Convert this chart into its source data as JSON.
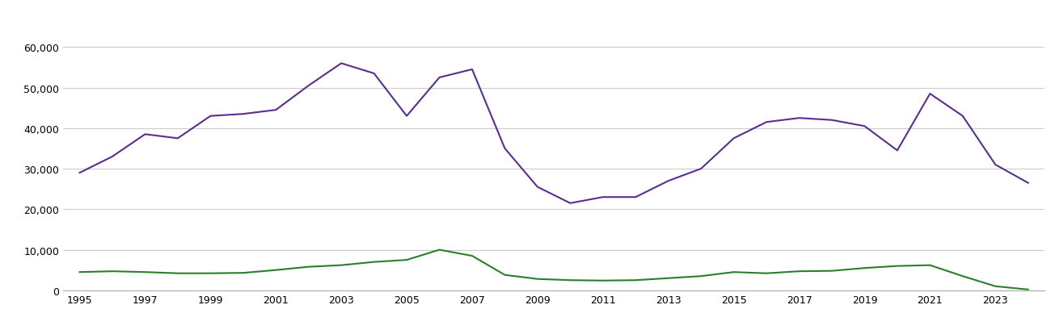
{
  "years": [
    1995,
    1996,
    1997,
    1998,
    1999,
    2000,
    2001,
    2002,
    2003,
    2004,
    2005,
    2006,
    2007,
    2008,
    2009,
    2010,
    2011,
    2012,
    2013,
    2014,
    2015,
    2016,
    2017,
    2018,
    2019,
    2020,
    2021,
    2022,
    2023,
    2024
  ],
  "new_homes": [
    4500,
    4700,
    4500,
    4200,
    4200,
    4300,
    5000,
    5800,
    6200,
    7000,
    7500,
    10000,
    8500,
    3800,
    2800,
    2500,
    2400,
    2500,
    3000,
    3500,
    4500,
    4200,
    4700,
    4800,
    5500,
    6000,
    6200,
    3500,
    1000,
    200
  ],
  "established_homes": [
    29000,
    33000,
    38500,
    37500,
    43000,
    43500,
    44500,
    50500,
    56000,
    53500,
    43000,
    52500,
    54500,
    35000,
    25500,
    21500,
    23000,
    23000,
    27000,
    30000,
    37500,
    41500,
    42500,
    42000,
    40500,
    34500,
    48500,
    43000,
    31000,
    26500
  ],
  "new_color": "#2d7d2d",
  "established_color": "#5b2d8e",
  "ylim": [
    0,
    62000
  ],
  "yticks": [
    0,
    10000,
    20000,
    30000,
    40000,
    50000,
    60000
  ],
  "background_color": "#ffffff",
  "grid_color": "#cccccc",
  "xtick_start": 1995,
  "xtick_step": 2,
  "xlim_left": 1994.5,
  "xlim_right": 2024.5
}
